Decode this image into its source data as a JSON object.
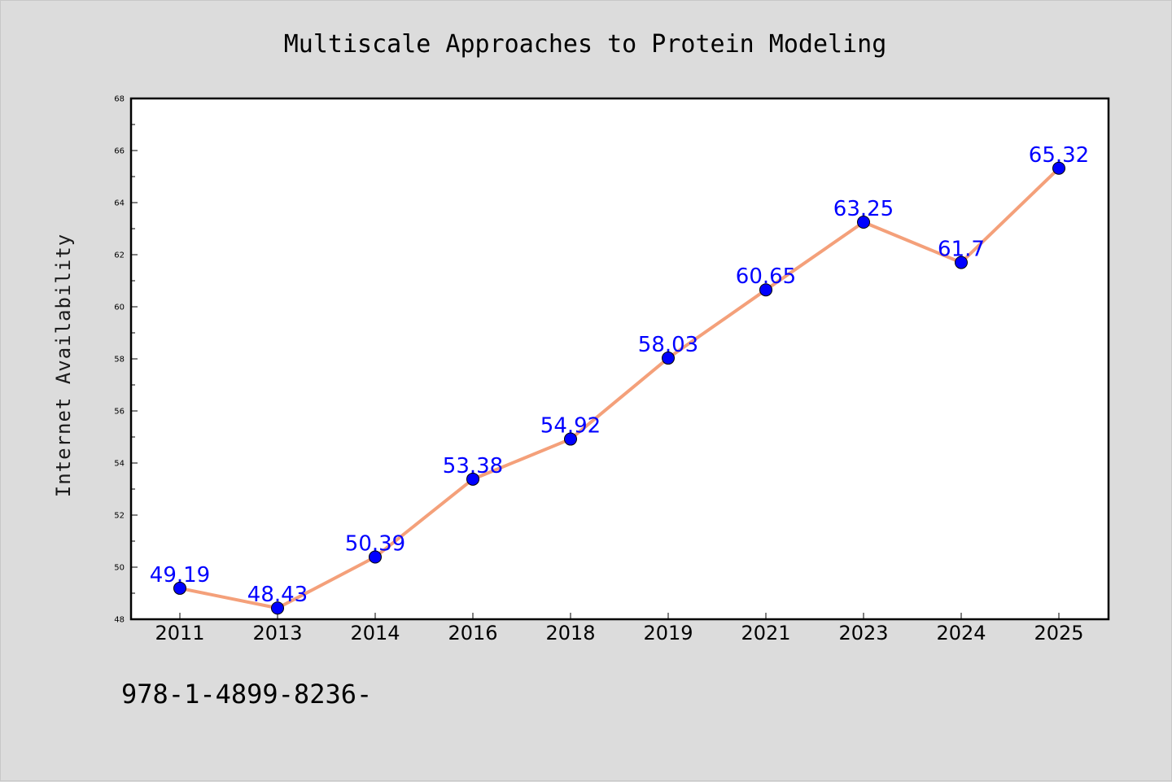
{
  "chart_data": {
    "type": "line",
    "title": "Multiscale Approaches to Protein Modeling",
    "xlabel": "",
    "ylabel": "Internet Availability",
    "categories": [
      "2011",
      "2013",
      "2014",
      "2016",
      "2018",
      "2019",
      "2021",
      "2023",
      "2024",
      "2025"
    ],
    "series": [
      {
        "values": [
          49.19,
          48.43,
          50.39,
          53.38,
          54.92,
          58.03,
          60.65,
          63.25,
          61.7,
          65.32
        ],
        "labels": [
          "49.19",
          "48.43",
          "50.39",
          "53.38",
          "54.92",
          "58.03",
          "60.65",
          "63.25",
          "61.7",
          "65.32"
        ],
        "line_color": "#f4a07a",
        "marker_color": "#0000ff"
      }
    ],
    "ylim": [
      48,
      68
    ],
    "yticks": [
      48,
      50,
      52,
      54,
      56,
      58,
      60,
      62,
      64,
      66,
      68
    ],
    "grid": false,
    "legend": "none"
  },
  "footer": {
    "isbn_text": "978-1-4899-8236-"
  }
}
